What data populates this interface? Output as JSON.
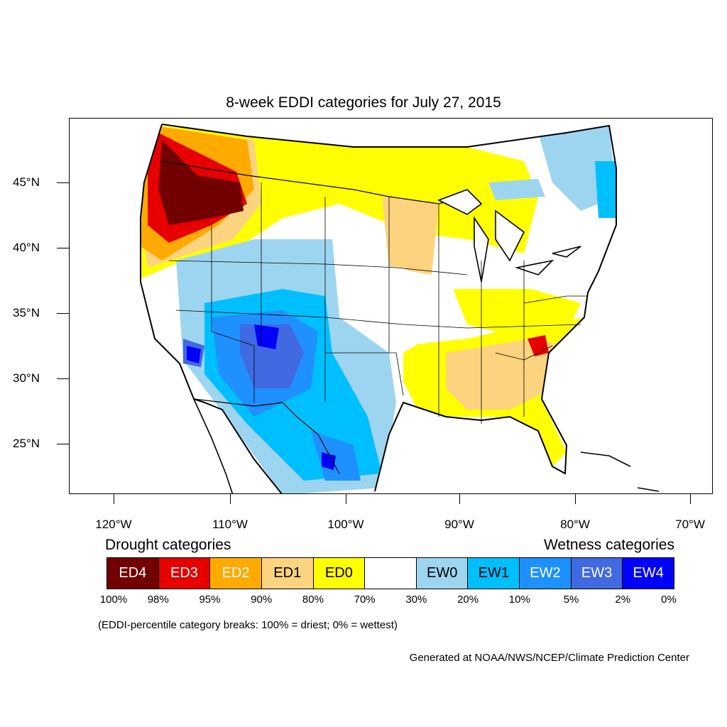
{
  "title": "8-week EDDI categories for July 27, 2015",
  "lat_labels": [
    "45°N",
    "40°N",
    "35°N",
    "30°N",
    "25°N"
  ],
  "lon_labels": [
    "120°W",
    "110°W",
    "100°W",
    "90°W",
    "80°W",
    "70°W"
  ],
  "legend": {
    "drought_heading": "Drought categories",
    "wetness_heading": "Wetness categories",
    "categories": [
      {
        "label": "ED4",
        "color": "#730000",
        "text_color": "#ffffff"
      },
      {
        "label": "ED3",
        "color": "#e60000",
        "text_color": "#ffffff"
      },
      {
        "label": "ED2",
        "color": "#ffaa00",
        "text_color": "#ffffff"
      },
      {
        "label": "ED1",
        "color": "#fcd37f",
        "text_color": "#000000"
      },
      {
        "label": "ED0",
        "color": "#ffff00",
        "text_color": "#000000"
      },
      {
        "label": "",
        "color": "#ffffff",
        "text_color": "#000000"
      },
      {
        "label": "EW0",
        "color": "#9dd5f0",
        "text_color": "#000000"
      },
      {
        "label": "EW1",
        "color": "#00bfff",
        "text_color": "#000000"
      },
      {
        "label": "EW2",
        "color": "#1e90ff",
        "text_color": "#ffffff"
      },
      {
        "label": "EW3",
        "color": "#4169e1",
        "text_color": "#ffffff"
      },
      {
        "label": "EW4",
        "color": "#0000ff",
        "text_color": "#ffffff"
      }
    ],
    "percentiles": [
      "100%",
      "98%",
      "95%",
      "90%",
      "80%",
      "70%",
      "30%",
      "20%",
      "10%",
      "5%",
      "2%",
      "0%"
    ]
  },
  "breaks_note": "(EDDI-percentile category breaks: 100% = driest; 0% = wettest)",
  "credit": "Generated at NOAA/NWS/NCEP/Climate Prediction Center"
}
